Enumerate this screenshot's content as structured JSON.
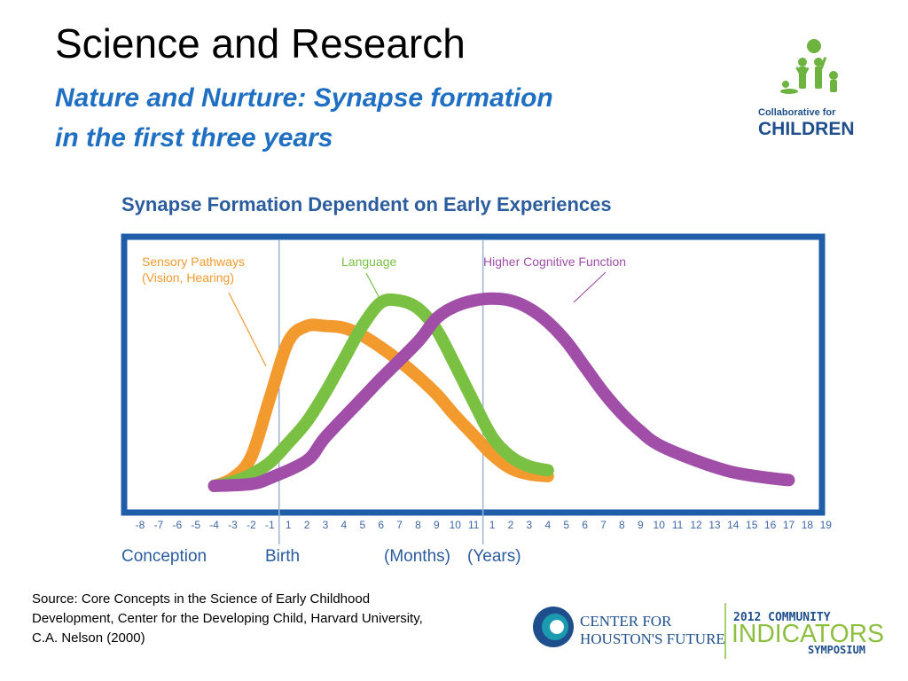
{
  "slide": {
    "title": "Science and Research",
    "subtitle_line1": "Nature and Nurture: Synapse formation",
    "subtitle_line2": "in the first three years",
    "source_line1": "Source: Core Concepts in the Science of Early Childhood",
    "source_line2": "Development, Center for the Developing Child, Harvard University,",
    "source_line3": "C.A. Nelson (2000)"
  },
  "logos": {
    "collaborative": {
      "line1": "Collaborative for",
      "line2": "CHILDREN",
      "color": "#1e4f8c",
      "figure_color": "#6cb33f"
    },
    "center_for_houstons_future": {
      "line1": "CENTER FOR",
      "line2": "HOUSTON'S FUTURE",
      "color": "#1e4f8c",
      "accent": "#1a9bb0"
    },
    "symposium": {
      "line1": "2012 COMMUNITY",
      "line2": "INDICATORS",
      "line3": "SYMPOSIUM",
      "line2_color": "#8cbf3f",
      "text_color": "#1e4f8c"
    }
  },
  "colors": {
    "frame": "#1f5da8",
    "heading": "#2b5c9e",
    "divider": "#9db3d4",
    "tick_text": "#3f68a8"
  },
  "chart_data": {
    "type": "line",
    "title": "Synapse Formation Dependent on Early Experiences",
    "x_ticks": [
      "-8",
      "-7",
      "-6",
      "-5",
      "-4",
      "-3",
      "-2",
      "-1",
      "1",
      "2",
      "3",
      "4",
      "5",
      "6",
      "7",
      "8",
      "9",
      "10",
      "11",
      "1",
      "2",
      "3",
      "4",
      "5",
      "6",
      "7",
      "8",
      "9",
      "10",
      "11",
      "12",
      "13",
      "14",
      "15",
      "16",
      "17",
      "18",
      "19"
    ],
    "x_range_index": [
      0,
      37
    ],
    "y_range": [
      0,
      100
    ],
    "axis_labels": [
      "Conception",
      "Birth",
      "(Months)",
      "(Years)"
    ],
    "dividers_after_tick_index": [
      7,
      18
    ],
    "series": [
      {
        "name": "Sensory Pathways",
        "name_line2": "(Vision, Hearing)",
        "color": "#f39a2e",
        "points": [
          [
            4.0,
            0
          ],
          [
            5.0,
            4
          ],
          [
            6.0,
            15
          ],
          [
            7.0,
            45
          ],
          [
            8.0,
            74
          ],
          [
            9.0,
            82
          ],
          [
            10.0,
            82
          ],
          [
            11.0,
            81
          ],
          [
            12.0,
            77
          ],
          [
            13.0,
            71
          ],
          [
            14.0,
            64
          ],
          [
            15.0,
            56
          ],
          [
            16.0,
            47
          ],
          [
            17.0,
            36
          ],
          [
            18.0,
            26
          ],
          [
            19.0,
            16
          ],
          [
            20.0,
            9
          ],
          [
            21.0,
            6
          ],
          [
            22.0,
            5
          ]
        ]
      },
      {
        "name": "Language",
        "color": "#7ac143",
        "points": [
          [
            4.0,
            0
          ],
          [
            5.0,
            2
          ],
          [
            6.0,
            6
          ],
          [
            7.0,
            12
          ],
          [
            8.0,
            22
          ],
          [
            9.0,
            33
          ],
          [
            10.0,
            48
          ],
          [
            11.0,
            65
          ],
          [
            12.0,
            82
          ],
          [
            13.0,
            94
          ],
          [
            14.0,
            95
          ],
          [
            15.0,
            91
          ],
          [
            16.0,
            80
          ],
          [
            17.0,
            62
          ],
          [
            18.0,
            43
          ],
          [
            19.0,
            25
          ],
          [
            20.0,
            15
          ],
          [
            21.0,
            10
          ],
          [
            22.0,
            8
          ]
        ]
      },
      {
        "name": "Higher Cognitive Function",
        "color": "#a04ea8",
        "points": [
          [
            4.0,
            0
          ],
          [
            6.0,
            1
          ],
          [
            7.0,
            4
          ],
          [
            9.0,
            13
          ],
          [
            10.0,
            25
          ],
          [
            12.0,
            45
          ],
          [
            13.0,
            55
          ],
          [
            15.0,
            74
          ],
          [
            16.0,
            86
          ],
          [
            17.0,
            92
          ],
          [
            18.0,
            95
          ],
          [
            19.0,
            96
          ],
          [
            20.0,
            95
          ],
          [
            21.0,
            91
          ],
          [
            22.0,
            84
          ],
          [
            23.0,
            74
          ],
          [
            24.0,
            61
          ],
          [
            25.0,
            48
          ],
          [
            26.0,
            37
          ],
          [
            27.0,
            28
          ],
          [
            28.0,
            21
          ],
          [
            30.0,
            13
          ],
          [
            32.0,
            7
          ],
          [
            34.0,
            4
          ],
          [
            35.0,
            3
          ]
        ]
      }
    ]
  }
}
